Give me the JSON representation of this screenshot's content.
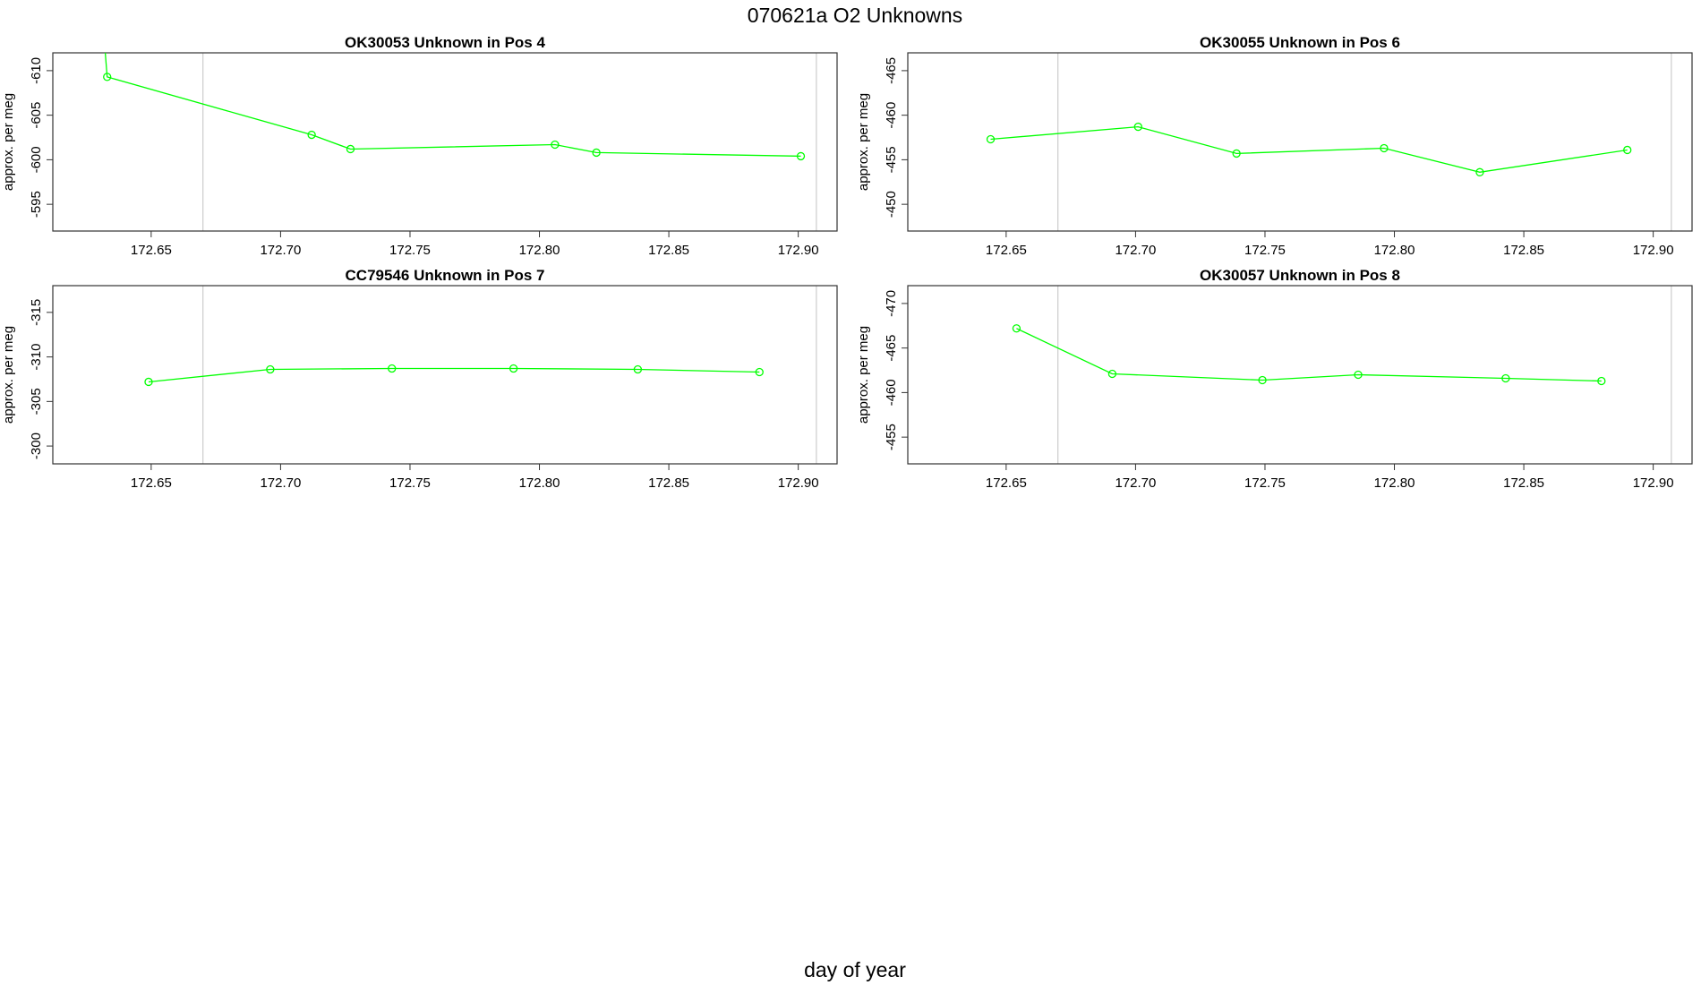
{
  "figure": {
    "title": "070621a  O2 Unknowns",
    "xlabel": "day of year",
    "series_color": "#00ff00",
    "vline_color": "#cccccc"
  },
  "chart_data": [
    {
      "type": "line",
      "title": "OK30053    Unknown in Pos 4",
      "xlabel": "",
      "ylabel": "approx. per meg",
      "xlim": [
        172.612,
        172.915
      ],
      "ylim": [
        -612,
        -592
      ],
      "y_reversed": true,
      "xticks": [
        "172.65",
        "172.70",
        "172.75",
        "172.80",
        "172.85",
        "172.90"
      ],
      "yticks": [
        "-595",
        "-600",
        "-605",
        "-610"
      ],
      "vlines": [
        172.67,
        172.907
      ],
      "x": [
        172.632,
        172.633,
        172.712,
        172.727,
        172.806,
        172.822,
        172.901
      ],
      "y": [
        -613,
        -609.3,
        -602.8,
        -601.2,
        -601.7,
        -600.8,
        -600.4
      ],
      "markers": [
        false,
        true,
        true,
        true,
        true,
        true,
        true
      ]
    },
    {
      "type": "line",
      "title": "OK30055    Unknown in Pos 6",
      "xlabel": "",
      "ylabel": "approx. per meg",
      "xlim": [
        172.612,
        172.915
      ],
      "ylim": [
        -467,
        -447
      ],
      "y_reversed": true,
      "xticks": [
        "172.65",
        "172.70",
        "172.75",
        "172.80",
        "172.85",
        "172.90"
      ],
      "yticks": [
        "-450",
        "-455",
        "-460",
        "-465"
      ],
      "vlines": [
        172.67,
        172.907
      ],
      "x": [
        172.644,
        172.701,
        172.739,
        172.796,
        172.833,
        172.89
      ],
      "y": [
        -457.3,
        -458.7,
        -455.7,
        -456.3,
        -453.6,
        -456.1
      ],
      "markers": [
        true,
        true,
        true,
        true,
        true,
        true
      ]
    },
    {
      "type": "line",
      "title": "CC79546    Unknown in Pos 7",
      "xlabel": "",
      "ylabel": "approx. per meg",
      "xlim": [
        172.612,
        172.915
      ],
      "ylim": [
        -318,
        -298
      ],
      "y_reversed": true,
      "xticks": [
        "172.65",
        "172.70",
        "172.75",
        "172.80",
        "172.85",
        "172.90"
      ],
      "yticks": [
        "-300",
        "-305",
        "-310",
        "-315"
      ],
      "vlines": [
        172.67,
        172.907
      ],
      "x": [
        172.649,
        172.696,
        172.743,
        172.79,
        172.838,
        172.885
      ],
      "y": [
        -307.2,
        -308.6,
        -308.7,
        -308.7,
        -308.6,
        -308.3
      ],
      "markers": [
        true,
        true,
        true,
        true,
        true,
        true
      ]
    },
    {
      "type": "line",
      "title": "OK30057    Unknown in Pos 8",
      "xlabel": "",
      "ylabel": "approx. per meg",
      "xlim": [
        172.612,
        172.915
      ],
      "ylim": [
        -472,
        -452
      ],
      "y_reversed": true,
      "xticks": [
        "172.65",
        "172.70",
        "172.75",
        "172.80",
        "172.85",
        "172.90"
      ],
      "yticks": [
        "-455",
        "-460",
        "-465",
        "-470"
      ],
      "vlines": [
        172.67,
        172.907
      ],
      "x": [
        172.654,
        172.691,
        172.749,
        172.786,
        172.843,
        172.88
      ],
      "y": [
        -467.2,
        -462.1,
        -461.4,
        -462.0,
        -461.6,
        -461.3
      ],
      "markers": [
        true,
        true,
        true,
        true,
        true,
        true
      ]
    }
  ]
}
